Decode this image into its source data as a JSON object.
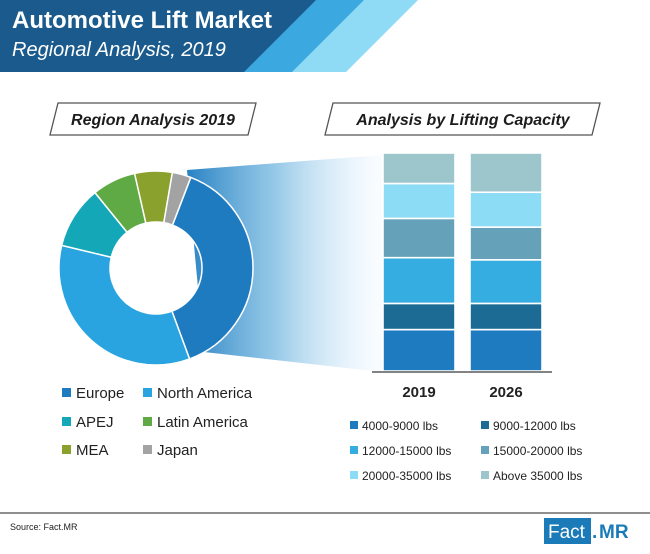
{
  "header": {
    "title": "Automotive Lift Market",
    "subtitle": "Regional Analysis, 2019"
  },
  "colors": {
    "header_dark": "#1a5a8c",
    "accent_blue": "#2a8fd0",
    "accent_light": "#6fd0ef"
  },
  "chart_data": [
    {
      "type": "pie",
      "title": "Region Analysis 2019",
      "donut": true,
      "legend_position": "bottom",
      "slices": [
        {
          "label": "Europe",
          "value": 37,
          "color": "#1e7bc0"
        },
        {
          "label": "North America",
          "value": 33,
          "color": "#2aa4e0"
        },
        {
          "label": "APEJ",
          "value": 10,
          "color": "#14a7b8"
        },
        {
          "label": "Latin America",
          "value": 7,
          "color": "#5faa45"
        },
        {
          "label": "MEA",
          "value": 6,
          "color": "#8aa12e"
        },
        {
          "label": "Japan",
          "value": 3,
          "color": "#a3a3a3"
        }
      ]
    },
    {
      "type": "bar",
      "stacked": true,
      "percent": true,
      "title": "Analysis by Lifting Capacity",
      "categories": [
        "2019",
        "2026"
      ],
      "legend_position": "bottom",
      "series": [
        {
          "name": "4000-9000 lbs",
          "values": [
            19,
            19
          ],
          "color": "#1e7bc0"
        },
        {
          "name": "9000-12000 lbs",
          "values": [
            12,
            12
          ],
          "color": "#1b6b95"
        },
        {
          "name": "12000-15000 lbs",
          "values": [
            21,
            20
          ],
          "color": "#36ade0"
        },
        {
          "name": "15000-20000 lbs",
          "values": [
            18,
            15
          ],
          "color": "#65a1b8"
        },
        {
          "name": "20000-35000 lbs",
          "values": [
            16,
            16
          ],
          "color": "#8cdcf5"
        },
        {
          "name": "Above 35000 lbs",
          "values": [
            14,
            18
          ],
          "color": "#9cc5cc"
        }
      ]
    }
  ],
  "footer": {
    "source": "Source: Fact.MR",
    "logo_left": "Fact",
    "logo_sep": ".",
    "logo_right": "MR"
  }
}
